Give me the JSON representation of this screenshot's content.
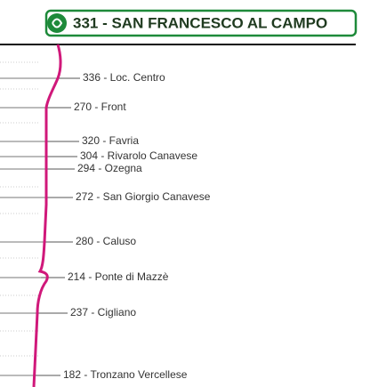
{
  "header": {
    "title": "331 - SAN FRANCESCO AL CAMPO"
  },
  "stops": [
    {
      "label": "336 - Loc. Centro"
    },
    {
      "label": "270 - Front"
    },
    {
      "label": "320 - Favria"
    },
    {
      "label": "304 - Rivarolo Canavese"
    },
    {
      "label": "294 - Ozegna"
    },
    {
      "label": "272 - San Giorgio Canavese"
    },
    {
      "label": "280 - Caluso"
    },
    {
      "label": "214 - Ponte di Mazzè"
    },
    {
      "label": "237 - Cigliano"
    },
    {
      "label": "182 - Tronzano Vercellese"
    }
  ]
}
